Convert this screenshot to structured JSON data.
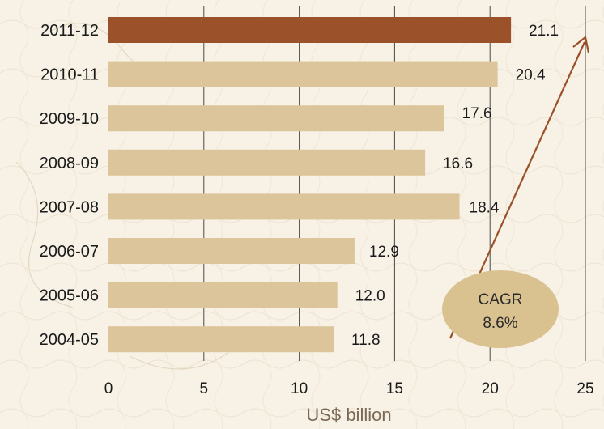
{
  "chart_data": {
    "type": "bar",
    "orientation": "horizontal",
    "categories": [
      "2011-12",
      "2010-11",
      "2009-10",
      "2008-09",
      "2007-08",
      "2006-07",
      "2005-06",
      "2004-05"
    ],
    "values": [
      21.1,
      20.4,
      17.6,
      16.6,
      18.4,
      12.9,
      12.0,
      11.8
    ],
    "value_labels": [
      "21.1",
      "20.4",
      "17.6",
      "16.6",
      "18.4",
      "12.9",
      "12.0",
      "11.8"
    ],
    "xlabel": "US$ billion",
    "xlim": [
      0,
      25
    ],
    "xticks": [
      "0",
      "5",
      "10",
      "15",
      "20",
      "25"
    ],
    "grid": "vertical",
    "colors": {
      "highlight_bar": "#9b5129",
      "bar": "#dcc59a",
      "arrow": "#9b5129",
      "ellipse": "#d9c290",
      "gridline": "#4a4a4a"
    },
    "annotation": {
      "line1": "CAGR",
      "line2": "8.6%"
    }
  }
}
